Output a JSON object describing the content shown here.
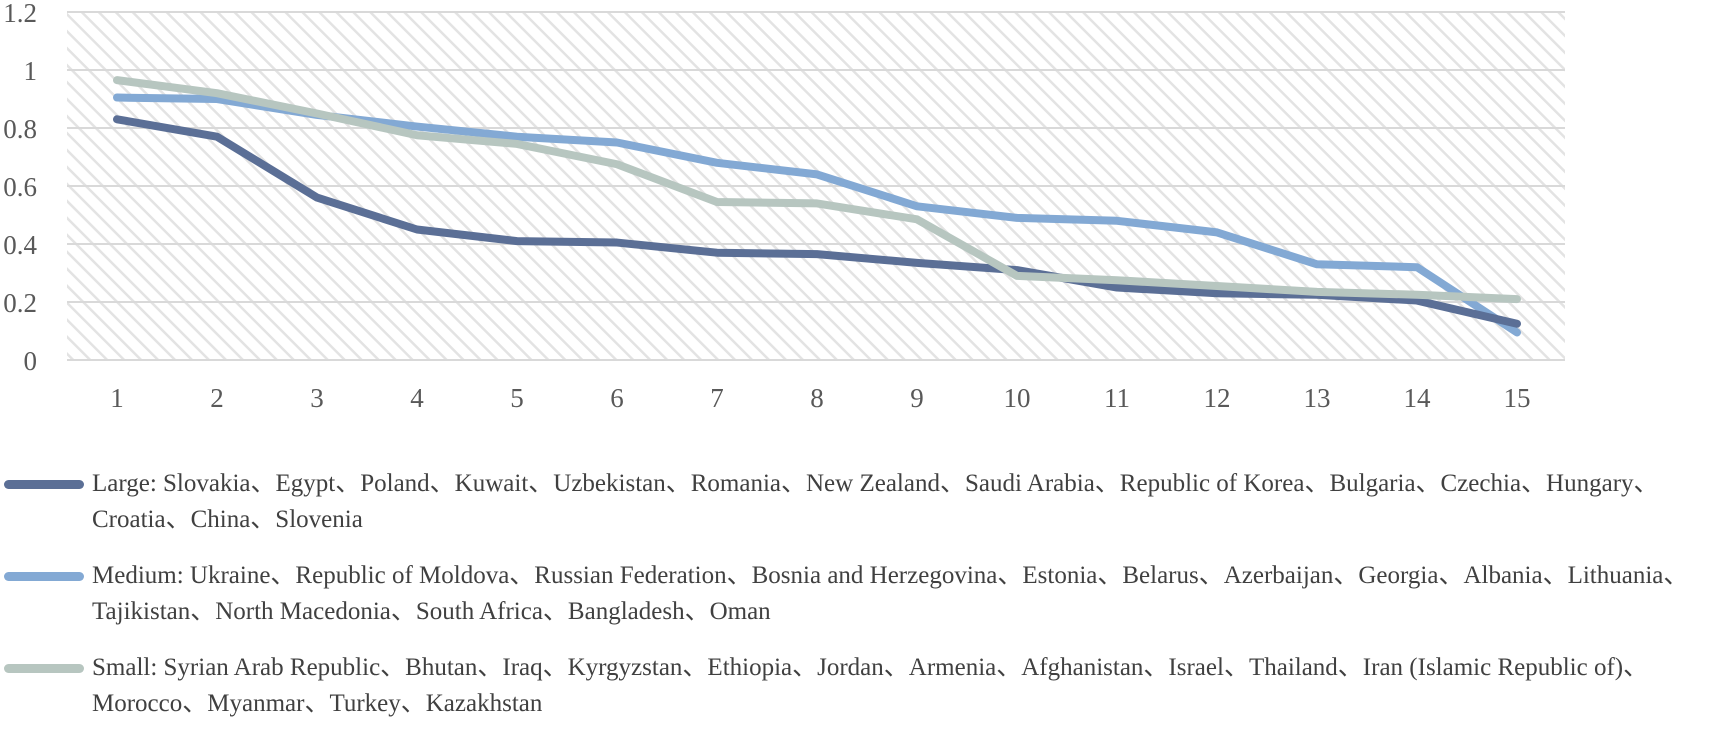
{
  "chart_data": {
    "type": "line",
    "categories": [
      "1",
      "2",
      "3",
      "4",
      "5",
      "6",
      "7",
      "8",
      "9",
      "10",
      "11",
      "12",
      "13",
      "14",
      "15"
    ],
    "ylim": [
      0,
      1.2
    ],
    "yticks": [
      "0",
      "0.2",
      "0.4",
      "0.6",
      "0.8",
      "1",
      "1.2"
    ],
    "ytick_values": [
      0,
      0.2,
      0.4,
      0.6,
      0.8,
      1.0,
      1.2
    ],
    "grid": true,
    "background": "diagonal-hatch",
    "legend_position": "bottom",
    "series": [
      {
        "name": "Large: Slovakia、Egypt、Poland、Kuwait、Uzbekistan、Romania、New Zealand、Saudi Arabia、Republic of Korea、Bulgaria、Czechia、Hungary、Croatia、China、Slovenia",
        "color": "#5b6f96",
        "values": [
          0.83,
          0.77,
          0.56,
          0.45,
          0.41,
          0.405,
          0.37,
          0.365,
          0.335,
          0.31,
          0.25,
          0.23,
          0.225,
          0.205,
          0.125
        ]
      },
      {
        "name": "Medium: Ukraine、Republic of Moldova、Russian Federation、Bosnia and Herzegovina、Estonia、Belarus、Azerbaijan、Georgia、Albania、Lithuania、Tajikistan、North Macedonia、South Africa、Bangladesh、Oman",
        "color": "#83a9d4",
        "values": [
          0.905,
          0.9,
          0.845,
          0.805,
          0.77,
          0.75,
          0.68,
          0.64,
          0.53,
          0.49,
          0.48,
          0.44,
          0.33,
          0.32,
          0.095
        ]
      },
      {
        "name": "Small: Syrian Arab Republic、Bhutan、Iraq、Kyrgyzstan、Ethiopia、Jordan、Armenia、Afghanistan、Israel、Thailand、Iran (Islamic Republic of)、Morocco、Myanmar、Turkey、Kazakhstan",
        "color": "#b7c6c0",
        "values": [
          0.965,
          0.92,
          0.85,
          0.775,
          0.745,
          0.675,
          0.545,
          0.54,
          0.485,
          0.29,
          0.275,
          0.255,
          0.235,
          0.225,
          0.21
        ]
      }
    ]
  }
}
